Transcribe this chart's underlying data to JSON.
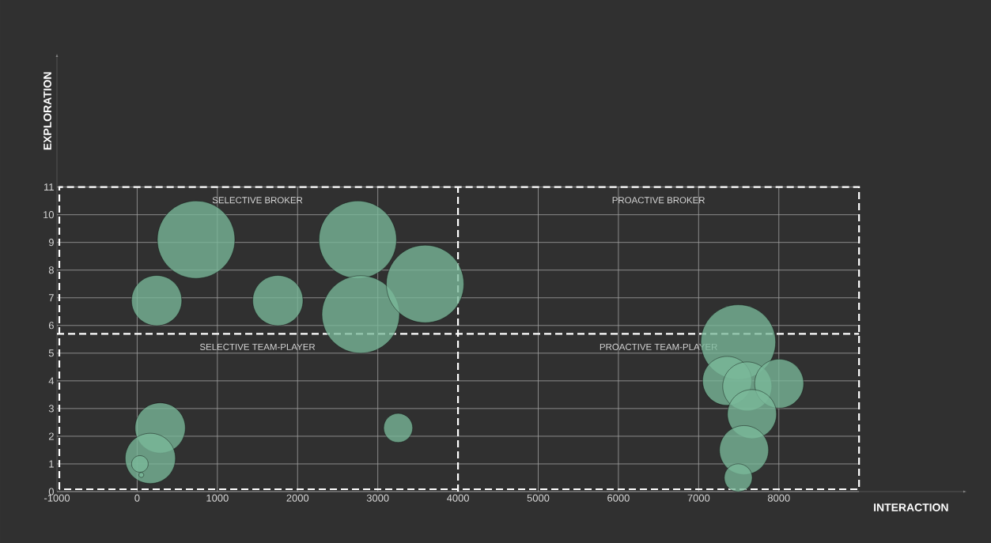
{
  "chart_data": {
    "type": "bubble",
    "xlabel": "INTERACTION",
    "ylabel": "EXPLORATION",
    "x": [
      735,
      243,
      1754,
      2750,
      2787,
      3590,
      287,
      164,
      34,
      52,
      3254,
      7494,
      7355,
      7606,
      8004,
      7665,
      7566,
      7494
    ],
    "values": [
      9.1,
      6.9,
      6.9,
      9.1,
      6.4,
      7.5,
      2.3,
      1.2,
      1.0,
      0.6,
      2.3,
      5.4,
      4.0,
      3.8,
      3.9,
      2.8,
      1.5,
      0.5
    ],
    "sizes": [
      1,
      0.42,
      0.42,
      1,
      1,
      1,
      0.42,
      0.42,
      0.046,
      0.004,
      0.14,
      0.93,
      0.4,
      0.4,
      0.4,
      0.4,
      0.4,
      0.13
    ],
    "color": "#7ab89a",
    "xlim": [
      -1000,
      10300
    ],
    "ylim": [
      0,
      15.7
    ],
    "xticks": [
      -1000,
      0,
      1000,
      2000,
      3000,
      4000,
      5000,
      6000,
      7000,
      8000
    ],
    "yticks": [
      0,
      1,
      2,
      3,
      4,
      5,
      6,
      7,
      8,
      9,
      10,
      11
    ],
    "grid": true,
    "ref_lines": [
      {
        "axis": "x",
        "value": 4000,
        "line_style": "dashed"
      },
      {
        "axis": "y",
        "value": 5.7,
        "line_style": "dashed"
      }
    ],
    "annotations": [
      "SELECTIVE BROKER",
      "PROACTIVE BROKER",
      "SELECTIVE TEAM-PLAYER",
      "PROACTIVE TEAM-PLAYER"
    ]
  }
}
